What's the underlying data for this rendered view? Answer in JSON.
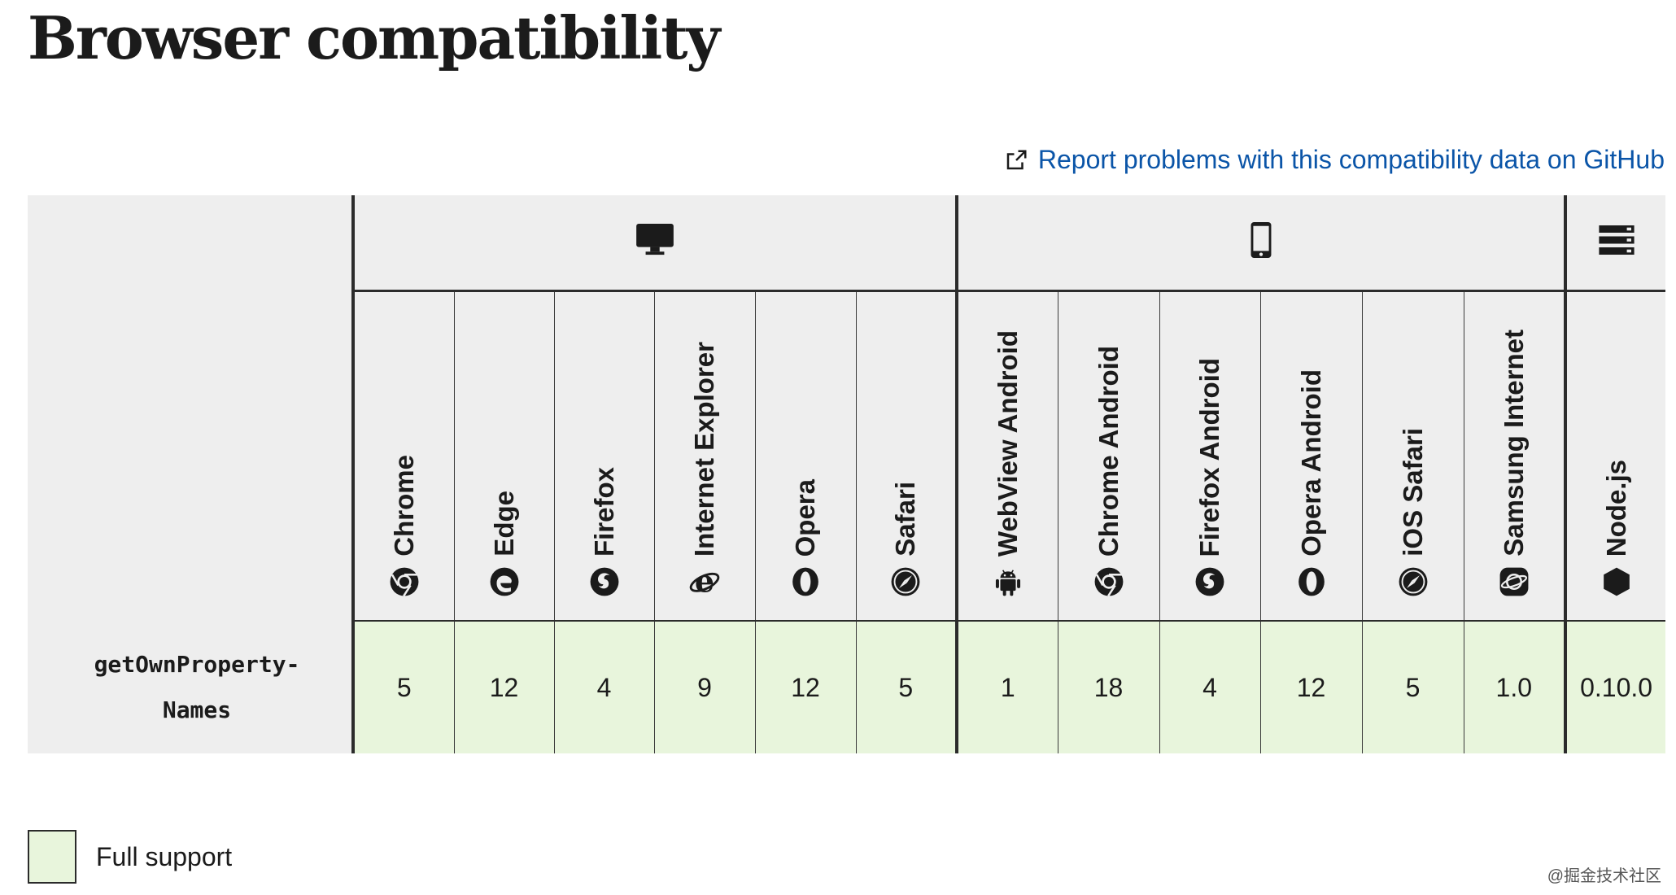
{
  "page": {
    "title": "Browser compatibility"
  },
  "report": {
    "link_text": "Report problems with this compatibility data on GitHub",
    "icon": "external-link-icon"
  },
  "groups": [
    {
      "name": "desktop",
      "icon": "desktop-icon"
    },
    {
      "name": "mobile",
      "icon": "mobile-icon"
    },
    {
      "name": "server",
      "icon": "server-icon"
    }
  ],
  "browsers": [
    {
      "name": "Chrome",
      "icon": "chrome-icon"
    },
    {
      "name": "Edge",
      "icon": "edge-icon"
    },
    {
      "name": "Firefox",
      "icon": "firefox-icon"
    },
    {
      "name": "Internet Explorer",
      "icon": "internet-explorer-icon"
    },
    {
      "name": "Opera",
      "icon": "opera-icon"
    },
    {
      "name": "Safari",
      "icon": "safari-icon"
    },
    {
      "name": "WebView Android",
      "icon": "android-icon"
    },
    {
      "name": "Chrome Android",
      "icon": "chrome-icon"
    },
    {
      "name": "Firefox Android",
      "icon": "firefox-icon"
    },
    {
      "name": "Opera Android",
      "icon": "opera-icon"
    },
    {
      "name": "iOS Safari",
      "icon": "safari-icon"
    },
    {
      "name": "Samsung Internet",
      "icon": "samsung-internet-icon"
    },
    {
      "name": "Node.js",
      "icon": "nodejs-icon"
    }
  ],
  "feature": {
    "name_line1": "getOwnProperty-",
    "name_line2": "Names",
    "versions": [
      "5",
      "12",
      "4",
      "9",
      "12",
      "5",
      "1",
      "18",
      "4",
      "12",
      "5",
      "1.0",
      "0.10.0"
    ]
  },
  "legend": {
    "label": "Full support"
  },
  "colors": {
    "full_support": "#e8f5dc",
    "header_bg": "#eeeeee",
    "link": "#0b55a8"
  },
  "watermark": "@掘金技术社区"
}
